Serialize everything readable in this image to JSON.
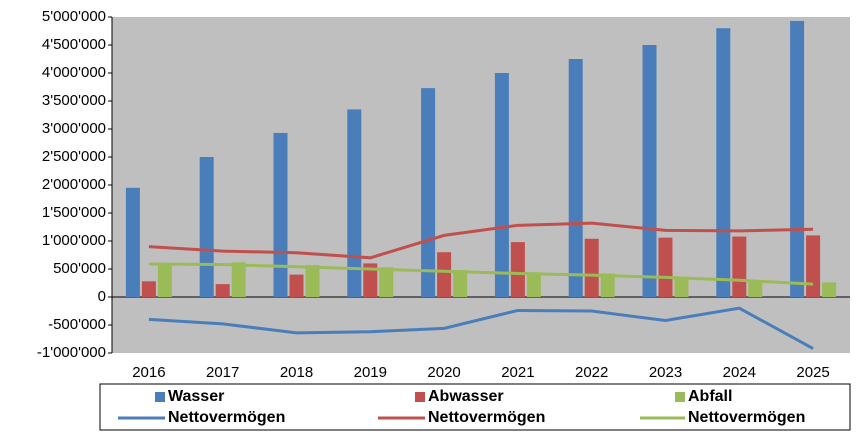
{
  "chart_data": {
    "type": "bar",
    "categories": [
      "2016",
      "2017",
      "2018",
      "2019",
      "2020",
      "2021",
      "2022",
      "2023",
      "2024",
      "2025"
    ],
    "series": [
      {
        "name": "Wasser",
        "type": "bar",
        "color": "#4a7ebb",
        "values": [
          1950000,
          2500000,
          2930000,
          3350000,
          3730000,
          4000000,
          4250000,
          4500000,
          4800000,
          4930000
        ]
      },
      {
        "name": "Abwasser",
        "type": "bar",
        "color": "#c0504d",
        "values": [
          280000,
          230000,
          400000,
          600000,
          800000,
          980000,
          1040000,
          1060000,
          1080000,
          1100000
        ]
      },
      {
        "name": "Abfall",
        "type": "bar",
        "color": "#9bbb59",
        "values": [
          590000,
          620000,
          570000,
          530000,
          480000,
          440000,
          420000,
          360000,
          300000,
          260000
        ]
      },
      {
        "name": "Nettovermögen",
        "type": "line",
        "color": "#4a7ebb",
        "values": [
          -400000,
          -480000,
          -640000,
          -620000,
          -560000,
          -240000,
          -250000,
          -420000,
          -200000,
          -920000
        ]
      },
      {
        "name": "Nettovermögen",
        "type": "line",
        "color": "#c0504d",
        "values": [
          900000,
          820000,
          790000,
          700000,
          1100000,
          1280000,
          1320000,
          1190000,
          1180000,
          1210000
        ]
      },
      {
        "name": "Nettovermögen",
        "type": "line",
        "color": "#9bbb59",
        "values": [
          590000,
          580000,
          540000,
          500000,
          460000,
          420000,
          390000,
          350000,
          300000,
          230000
        ]
      }
    ],
    "ylim": [
      -1000000,
      5000000
    ],
    "yticks": [
      {
        "value": -1000000,
        "label": "-1'000'000"
      },
      {
        "value": -500000,
        "label": "-500'000"
      },
      0,
      {
        "value": 500000,
        "label": "500'000"
      },
      {
        "value": 1000000,
        "label": "1'000'000"
      },
      {
        "value": 1500000,
        "label": "1'500'000"
      },
      {
        "value": 2000000,
        "label": "2'000'000"
      },
      {
        "value": 2500000,
        "label": "2'500'000"
      },
      {
        "value": 3000000,
        "label": "3'000'000"
      },
      {
        "value": 3500000,
        "label": "3'500'000"
      },
      {
        "value": 4000000,
        "label": "4'000'000"
      },
      {
        "value": 4500000,
        "label": "4'500'000"
      },
      {
        "value": 5000000,
        "label": "5'000'000"
      }
    ],
    "grid": false,
    "legend": "bottom",
    "plot_background": "#bfbfbf"
  }
}
